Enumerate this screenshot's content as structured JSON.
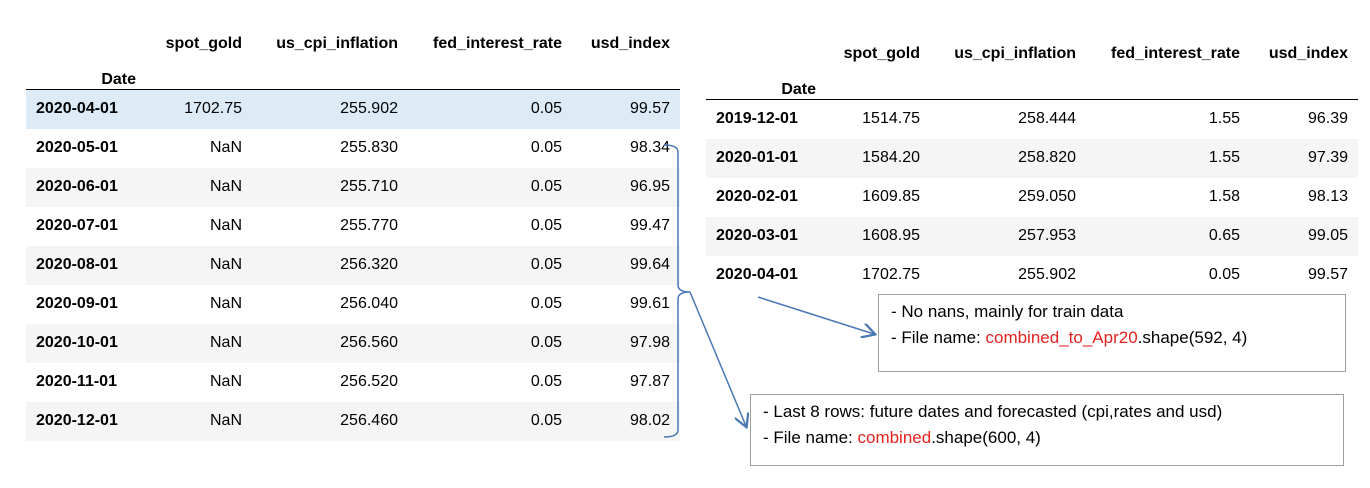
{
  "left_table": {
    "columns": [
      "spot_gold",
      "us_cpi_inflation",
      "fed_interest_rate",
      "usd_index"
    ],
    "index_name": "Date",
    "rows": [
      [
        "2020-04-01",
        "1702.75",
        "255.902",
        "0.05",
        "99.57"
      ],
      [
        "2020-05-01",
        "NaN",
        "255.830",
        "0.05",
        "98.34"
      ],
      [
        "2020-06-01",
        "NaN",
        "255.710",
        "0.05",
        "96.95"
      ],
      [
        "2020-07-01",
        "NaN",
        "255.770",
        "0.05",
        "99.47"
      ],
      [
        "2020-08-01",
        "NaN",
        "256.320",
        "0.05",
        "99.64"
      ],
      [
        "2020-09-01",
        "NaN",
        "256.040",
        "0.05",
        "99.61"
      ],
      [
        "2020-10-01",
        "NaN",
        "256.560",
        "0.05",
        "97.98"
      ],
      [
        "2020-11-01",
        "NaN",
        "256.520",
        "0.05",
        "97.87"
      ],
      [
        "2020-12-01",
        "NaN",
        "256.460",
        "0.05",
        "98.02"
      ]
    ]
  },
  "right_table": {
    "columns": [
      "spot_gold",
      "us_cpi_inflation",
      "fed_interest_rate",
      "usd_index"
    ],
    "index_name": "Date",
    "rows": [
      [
        "2019-12-01",
        "1514.75",
        "258.444",
        "1.55",
        "96.39"
      ],
      [
        "2020-01-01",
        "1584.20",
        "258.820",
        "1.55",
        "97.39"
      ],
      [
        "2020-02-01",
        "1609.85",
        "259.050",
        "1.58",
        "98.13"
      ],
      [
        "2020-03-01",
        "1608.95",
        "257.953",
        "0.65",
        "99.05"
      ],
      [
        "2020-04-01",
        "1702.75",
        "255.902",
        "0.05",
        "99.57"
      ]
    ]
  },
  "note_train": {
    "line1": "- No nans, mainly for train data",
    "line2_prefix": "- File name: ",
    "line2_red": "combined_to_Apr20",
    "line2_suffix": ".shape(592, 4)"
  },
  "note_future": {
    "line1": "- Last 8 rows:  future dates and forecasted (cpi,rates and usd)",
    "line2_prefix": "- File name:  ",
    "line2_red": "combined",
    "line2_suffix": ".shape(600, 4)"
  },
  "colors": {
    "highlight_row": "#ddebf7",
    "alt_row": "#f5f5f5",
    "red_text": "#e3231f",
    "arrow": "#4a78b5"
  }
}
